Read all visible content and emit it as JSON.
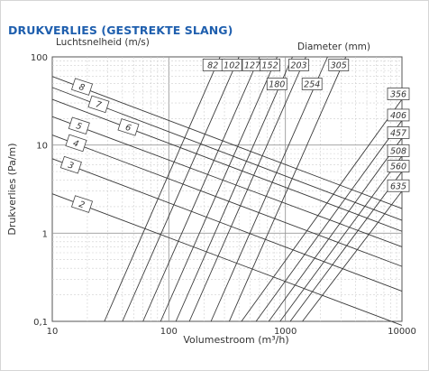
{
  "header": {
    "title": "DRUKVERLIES (GESTREKTE SLANG)"
  },
  "chart_data": {
    "type": "line",
    "title": "DRUKVERLIES (GESTREKTE SLANG)",
    "xlabel": "Volumestroom (m³/h)",
    "ylabel": "Drukverlies (Pa/m)",
    "xscale": "log",
    "yscale": "log",
    "xlim": [
      10,
      10000
    ],
    "ylim": [
      0.1,
      100
    ],
    "x_ticks": [
      "10",
      "100",
      "1000",
      "10000"
    ],
    "y_ticks": [
      "0,1",
      "1",
      "10",
      "100"
    ],
    "grid": true,
    "velocity_header": "Luchtsnelheid (m/s)",
    "diameter_header": "Diameter (mm)",
    "series": [
      {
        "name": "82",
        "label_side": "top",
        "points": [
          [
            28,
            0.1
          ],
          [
            275,
            100
          ]
        ]
      },
      {
        "name": "102",
        "label_side": "top",
        "points": [
          [
            40,
            0.1
          ],
          [
            400,
            100
          ]
        ]
      },
      {
        "name": "127",
        "label_side": "top",
        "points": [
          [
            60,
            0.1
          ],
          [
            600,
            100
          ]
        ]
      },
      {
        "name": "152",
        "label_side": "top",
        "points": [
          [
            85,
            0.1
          ],
          [
            850,
            100
          ]
        ]
      },
      {
        "name": "180",
        "label_side": "top",
        "points": [
          [
            115,
            0.1
          ],
          [
            1150,
            100
          ]
        ]
      },
      {
        "name": "203",
        "label_side": "top",
        "points": [
          [
            150,
            0.1
          ],
          [
            1500,
            100
          ]
        ]
      },
      {
        "name": "254",
        "label_side": "top",
        "points": [
          [
            230,
            0.1
          ],
          [
            2300,
            100
          ]
        ]
      },
      {
        "name": "305",
        "label_side": "top",
        "points": [
          [
            330,
            0.1
          ],
          [
            3300,
            100
          ]
        ]
      },
      {
        "name": "356",
        "label_side": "right",
        "points": [
          [
            420,
            0.1
          ],
          [
            10000,
            33
          ]
        ]
      },
      {
        "name": "406",
        "label_side": "right",
        "points": [
          [
            560,
            0.1
          ],
          [
            10000,
            19
          ]
        ]
      },
      {
        "name": "457",
        "label_side": "right",
        "points": [
          [
            720,
            0.1
          ],
          [
            10000,
            12
          ]
        ]
      },
      {
        "name": "508",
        "label_side": "right",
        "points": [
          [
            900,
            0.1
          ],
          [
            10000,
            7.5
          ]
        ]
      },
      {
        "name": "560",
        "label_side": "right",
        "points": [
          [
            1100,
            0.1
          ],
          [
            10000,
            5
          ]
        ]
      },
      {
        "name": "635",
        "label_side": "right",
        "points": [
          [
            1400,
            0.1
          ],
          [
            10000,
            3
          ]
        ]
      }
    ],
    "velocity_lines": [
      {
        "name": "8",
        "points": [
          [
            10,
            60
          ],
          [
            10000,
            1.9
          ]
        ]
      },
      {
        "name": "7",
        "points": [
          [
            10,
            45
          ],
          [
            10000,
            1.4
          ]
        ]
      },
      {
        "name": "6",
        "points": [
          [
            10,
            33
          ],
          [
            10000,
            1.05
          ]
        ]
      },
      {
        "name": "5",
        "points": [
          [
            10,
            21
          ],
          [
            10000,
            0.7
          ]
        ]
      },
      {
        "name": "4",
        "points": [
          [
            10,
            13
          ],
          [
            10000,
            0.42
          ]
        ]
      },
      {
        "name": "3",
        "points": [
          [
            10,
            7
          ],
          [
            10000,
            0.22
          ]
        ]
      },
      {
        "name": "2",
        "points": [
          [
            10,
            2.8
          ],
          [
            10000,
            0.09
          ]
        ]
      }
    ]
  }
}
